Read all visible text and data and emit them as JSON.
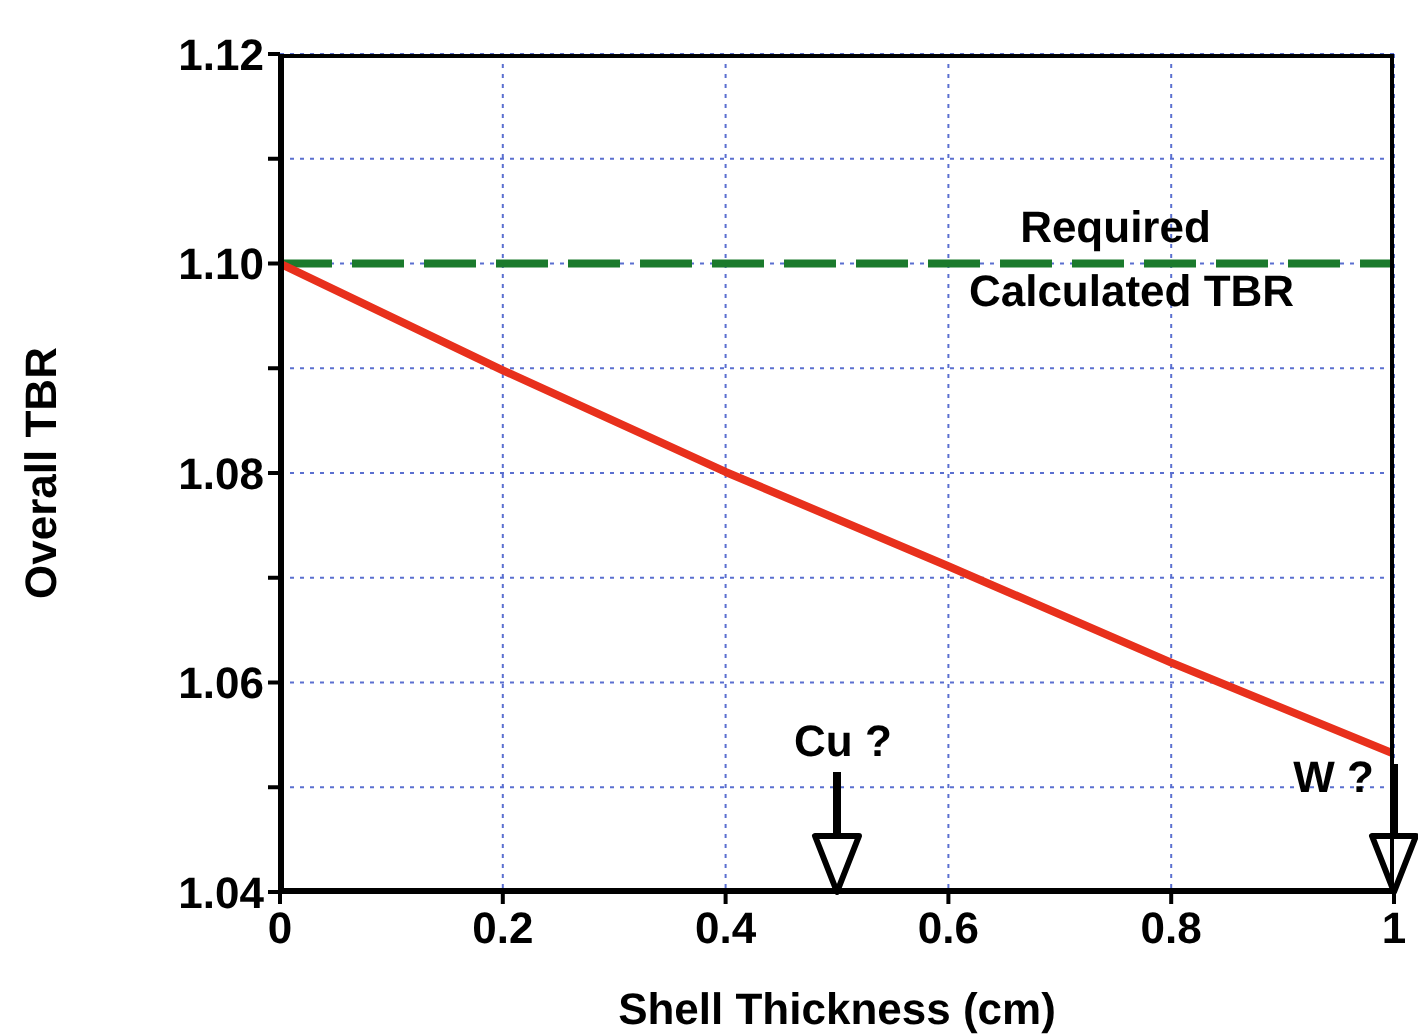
{
  "chart_data": {
    "type": "line",
    "xlabel": "Shell Thickness (cm)",
    "ylabel": "Overall TBR",
    "x": [
      0,
      0.2,
      0.4,
      0.6,
      0.8,
      1
    ],
    "series": [
      {
        "color": "#e8301c",
        "values": [
          1.1,
          1.0898,
          1.0801,
          1.0711,
          1.0619,
          1.0532
        ]
      }
    ],
    "xlim": [
      0,
      1
    ],
    "xticks": [
      0,
      0.2,
      0.4,
      0.6,
      0.8,
      1
    ],
    "ylim": [
      1.04,
      1.12
    ],
    "yticks": [
      1.04,
      {
        "value": 1.05,
        "label": null
      },
      1.06,
      {
        "value": 1.07,
        "label": null
      },
      1.08,
      {
        "value": 1.09,
        "label": null
      },
      {
        "value": 1.1,
        "label": "1.10"
      },
      {
        "value": 1.11,
        "label": null
      },
      1.12
    ],
    "ref_lines": [
      {
        "axis": "y",
        "value": 1.1,
        "label": "Required\nCalculated TBR",
        "color": "#1b7a2c",
        "line_style": "dashed"
      }
    ],
    "annotations": [
      "Cu ?",
      "W ?"
    ],
    "grid": true,
    "marker": "none",
    "line_style": "solid",
    "legend": false
  }
}
